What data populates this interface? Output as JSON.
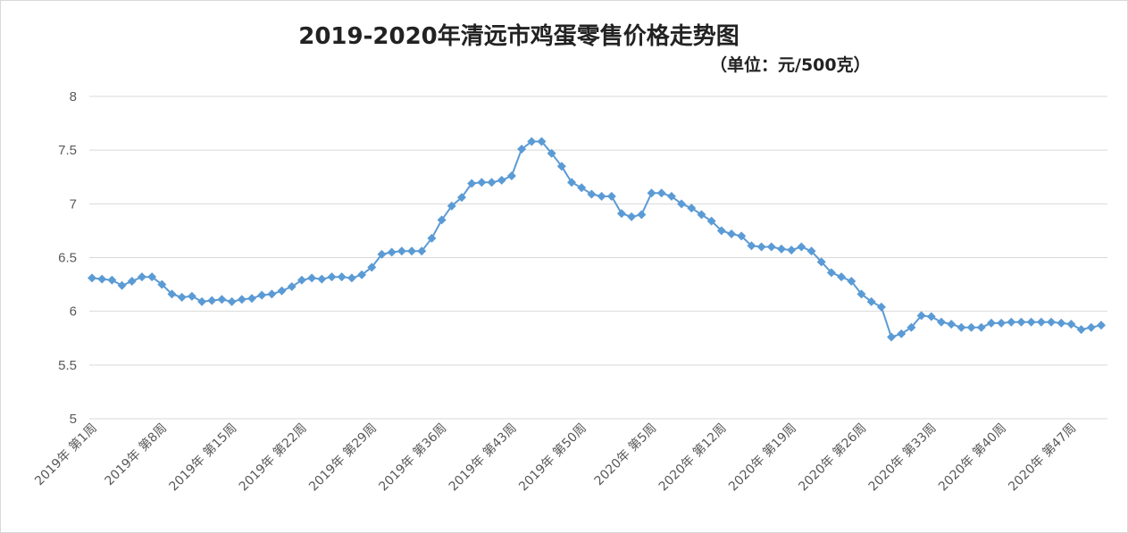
{
  "chart_data": {
    "type": "line",
    "title": "2019-2020年清远市鸡蛋零售价格走势图",
    "subtitle": "（单位：元/500克）",
    "ylim": [
      5,
      8
    ],
    "yticks": [
      "5",
      "5.5",
      "6",
      "6.5",
      "7",
      "7.5",
      "8"
    ],
    "ytick_values": [
      5,
      5.5,
      6,
      6.5,
      7,
      7.5,
      8
    ],
    "grid": true,
    "marker": "diamond",
    "colors": {
      "series": "#5b9bd5",
      "grid": "#d9d9d9",
      "axis_text": "#595959"
    },
    "x_tick_labels": [
      "2019年 第1周",
      "2019年 第8周",
      "2019年 第15周",
      "2019年 第22周",
      "2019年 第29周",
      "2019年 第36周",
      "2019年 第43周",
      "2019年 第50周",
      "2020年 第5周",
      "2020年 第12周",
      "2020年 第19周",
      "2020年 第26周",
      "2020年 第33周",
      "2020年 第40周",
      "2020年 第47周"
    ],
    "x_tick_every": 7,
    "series": [
      {
        "values": [
          6.31,
          6.3,
          6.29,
          6.24,
          6.28,
          6.32,
          6.32,
          6.25,
          6.16,
          6.13,
          6.14,
          6.09,
          6.1,
          6.11,
          6.09,
          6.11,
          6.12,
          6.15,
          6.16,
          6.19,
          6.23,
          6.29,
          6.31,
          6.3,
          6.32,
          6.32,
          6.31,
          6.34,
          6.41,
          6.53,
          6.55,
          6.56,
          6.56,
          6.56,
          6.68,
          6.85,
          6.98,
          7.06,
          7.19,
          7.2,
          7.2,
          7.22,
          7.26,
          7.51,
          7.58,
          7.58,
          7.47,
          7.35,
          7.2,
          7.15,
          7.09,
          7.07,
          7.07,
          6.91,
          6.88,
          6.9,
          7.1,
          7.1,
          7.07,
          7.0,
          6.96,
          6.9,
          6.84,
          6.75,
          6.72,
          6.7,
          6.61,
          6.6,
          6.6,
          6.58,
          6.57,
          6.6,
          6.56,
          6.46,
          6.36,
          6.32,
          6.28,
          6.16,
          6.09,
          6.04,
          5.76,
          5.79,
          5.85,
          5.96,
          5.95,
          5.9,
          5.88,
          5.85,
          5.85,
          5.85,
          5.89,
          5.89,
          5.9,
          5.9,
          5.9,
          5.9,
          5.9,
          5.89,
          5.88,
          5.83,
          5.85,
          5.87
        ]
      }
    ]
  }
}
